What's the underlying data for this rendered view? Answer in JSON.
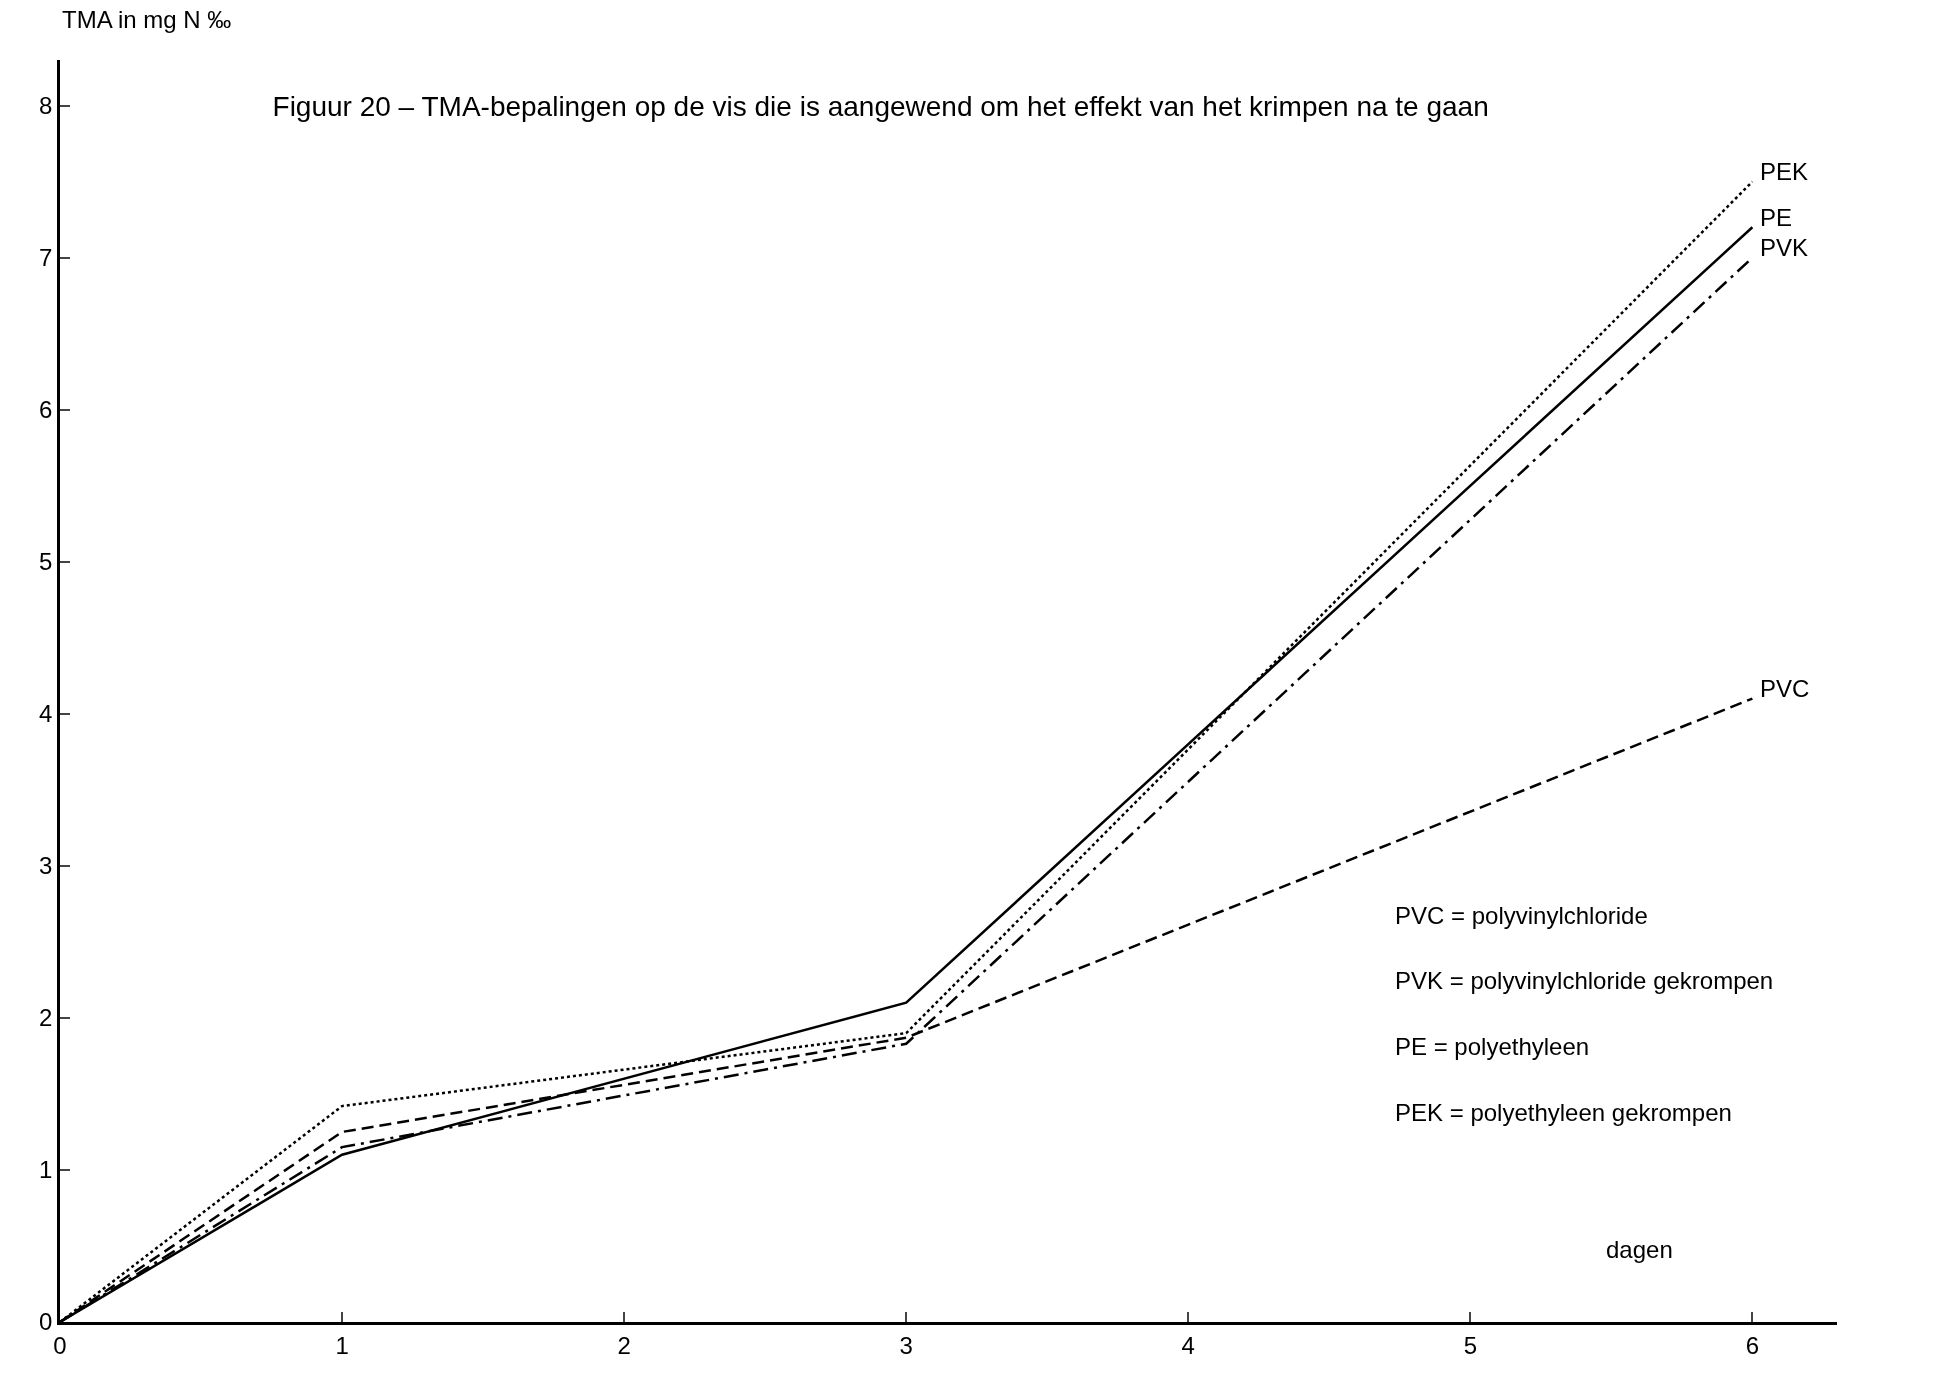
{
  "chart_data": {
    "type": "line",
    "title": "Figuur 20 – TMA-bepalingen op de vis die is aangewend om het effekt van het krimpen na te gaan",
    "xlabel": "dagen",
    "ylabel": "TMA in mg N ‰",
    "x": [
      0,
      1,
      3,
      6
    ],
    "series": [
      {
        "name": "PEK",
        "color": "#000000",
        "line_style": "dotted",
        "values": [
          0,
          1.42,
          1.9,
          7.5
        ]
      },
      {
        "name": "PE",
        "color": "#000000",
        "line_style": "solid",
        "values": [
          0,
          1.1,
          2.1,
          7.2
        ]
      },
      {
        "name": "PVK",
        "color": "#000000",
        "line_style": "dashdot",
        "values": [
          0,
          1.15,
          1.83,
          7.0
        ]
      },
      {
        "name": "PVC",
        "color": "#000000",
        "line_style": "dashed",
        "values": [
          0,
          1.25,
          1.87,
          4.1
        ]
      }
    ],
    "xlim": [
      0,
      6.3
    ],
    "xticks": [
      0,
      1,
      2,
      3,
      4,
      5,
      6
    ],
    "ylim": [
      0,
      8.3
    ],
    "yticks": [
      0,
      1,
      2,
      3,
      4,
      5,
      6,
      7,
      8
    ],
    "grid": false,
    "legend": false,
    "marker": "none",
    "annotations": [
      "PVC = polyvinylchloride",
      "PVK = polyvinylchloride gekrompen",
      "PE = polyethyleen",
      "PEK = polyethyleen gekrompen"
    ]
  }
}
